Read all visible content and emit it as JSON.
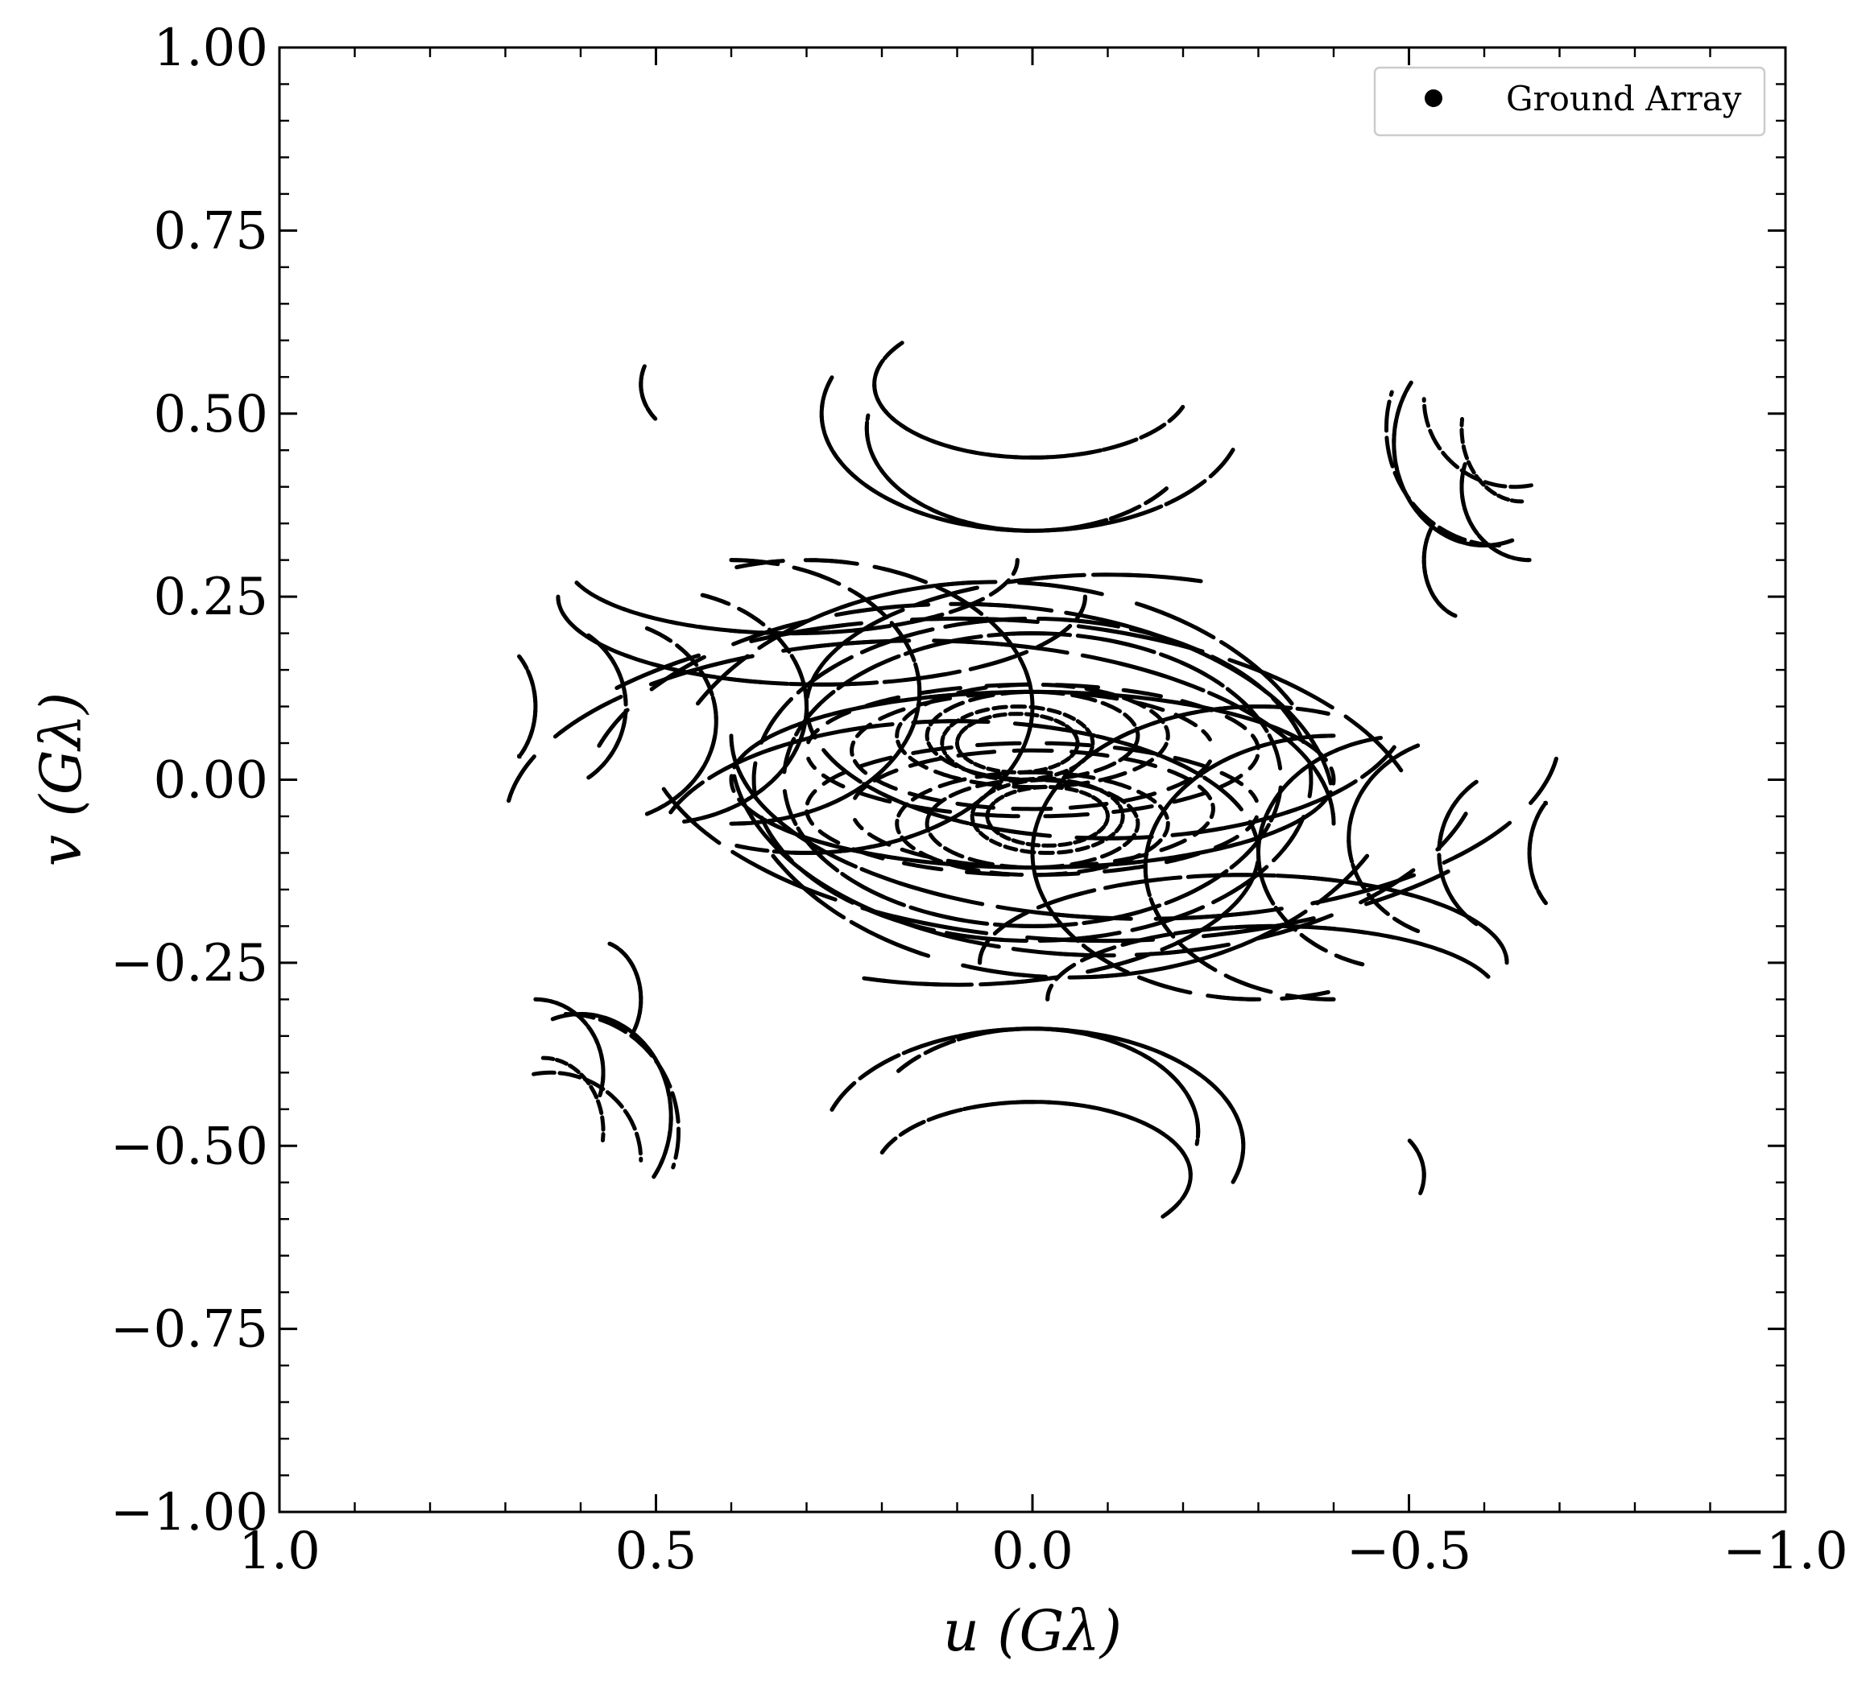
{
  "chart_data": {
    "type": "scatter",
    "title": "",
    "xlabel": "u (Gλ)",
    "ylabel": "v (Gλ)",
    "xlim": [
      1.0,
      -1.0
    ],
    "ylim": [
      -1.0,
      1.0
    ],
    "x_inverted": true,
    "grid": false,
    "legend_position": "top-right",
    "x_ticks": [
      {
        "value": 1.0,
        "label": "1.0"
      },
      {
        "value": 0.5,
        "label": "0.5"
      },
      {
        "value": 0.0,
        "label": "0.0"
      },
      {
        "value": -0.5,
        "label": "−0.5"
      },
      {
        "value": -1.0,
        "label": "−1.0"
      }
    ],
    "y_ticks": [
      {
        "value": 1.0,
        "label": "1.00"
      },
      {
        "value": 0.75,
        "label": "0.75"
      },
      {
        "value": 0.5,
        "label": "0.50"
      },
      {
        "value": 0.25,
        "label": "0.25"
      },
      {
        "value": 0.0,
        "label": "0.00"
      },
      {
        "value": -0.25,
        "label": "−0.25"
      },
      {
        "value": -0.5,
        "label": "−0.50"
      },
      {
        "value": -0.75,
        "label": "−0.75"
      },
      {
        "value": -1.0,
        "label": "−1.00"
      }
    ],
    "series": [
      {
        "name": "Ground Array",
        "color": "#000000",
        "marker": "dot",
        "tracks": [
          {
            "ru": 0.4,
            "rv": 0.12,
            "u0": 0.0,
            "v0": 0.0,
            "gap": 0.1,
            "from": 0.05,
            "to": 0.95
          },
          {
            "ru": 0.3,
            "rv": 0.09,
            "u0": 0.0,
            "v0": 0.04,
            "gap": 0.12,
            "from": 0.02,
            "to": 0.98
          },
          {
            "ru": 0.24,
            "rv": 0.08,
            "u0": 0.0,
            "v0": -0.04,
            "gap": 0.11,
            "from": 0.03,
            "to": 0.97
          },
          {
            "ru": 0.18,
            "rv": 0.07,
            "u0": 0.0,
            "v0": 0.06,
            "gap": 0.1,
            "from": 0.0,
            "to": 1.0
          },
          {
            "ru": 0.14,
            "rv": 0.06,
            "u0": 0.0,
            "v0": -0.06,
            "gap": 0.09,
            "from": 0.0,
            "to": 1.0
          },
          {
            "ru": 0.1,
            "rv": 0.05,
            "u0": 0.02,
            "v0": 0.05,
            "gap": 0.08,
            "from": 0.0,
            "to": 1.0
          },
          {
            "ru": 0.08,
            "rv": 0.04,
            "u0": -0.02,
            "v0": -0.05,
            "gap": 0.08,
            "from": 0.0,
            "to": 1.0
          },
          {
            "ru": 0.37,
            "rv": 0.22,
            "u0": 0.0,
            "v0": 0.0,
            "gap": 0.13,
            "from": 0.05,
            "to": 0.95
          },
          {
            "ru": 0.33,
            "rv": 0.2,
            "u0": 0.0,
            "v0": 0.0,
            "gap": 0.13,
            "from": 0.05,
            "to": 0.95
          },
          {
            "ru": 0.4,
            "rv": 0.18,
            "u0": -0.1,
            "v0": 0.1,
            "gap": 0.12,
            "from": 0.55,
            "to": 1.3
          },
          {
            "ru": 0.4,
            "rv": 0.18,
            "u0": 0.1,
            "v0": -0.1,
            "gap": 0.12,
            "from": 0.05,
            "to": 0.8
          },
          {
            "ru": 0.21,
            "rv": 0.1,
            "u0": 0.0,
            "v0": 0.54,
            "gap": 0.08,
            "from": 0.55,
            "to": 1.1
          },
          {
            "ru": 0.21,
            "rv": 0.1,
            "u0": 0.0,
            "v0": -0.54,
            "gap": 0.08,
            "from": 0.05,
            "to": 0.6
          },
          {
            "ru": 0.28,
            "rv": 0.16,
            "u0": 0.0,
            "v0": 0.5,
            "gap": 0.07,
            "from": 0.55,
            "to": 1.05
          },
          {
            "ru": 0.28,
            "rv": 0.16,
            "u0": 0.0,
            "v0": -0.5,
            "gap": 0.07,
            "from": 0.05,
            "to": 0.55
          },
          {
            "ru": 0.22,
            "rv": 0.14,
            "u0": 0.0,
            "v0": 0.48,
            "gap": 0.07,
            "from": 0.6,
            "to": 1.02
          },
          {
            "ru": 0.22,
            "rv": 0.14,
            "u0": 0.0,
            "v0": -0.48,
            "gap": 0.07,
            "from": 0.1,
            "to": 0.52
          },
          {
            "ru": 0.12,
            "rv": 0.14,
            "u0": -0.6,
            "v0": 0.46,
            "gap": 0.06,
            "from": 0.7,
            "to": 1.1
          },
          {
            "ru": 0.12,
            "rv": 0.14,
            "u0": 0.6,
            "v0": -0.46,
            "gap": 0.06,
            "from": 0.2,
            "to": 0.6
          },
          {
            "ru": 0.09,
            "rv": 0.1,
            "u0": -0.66,
            "v0": 0.4,
            "gap": 0.05,
            "from": 0.75,
            "to": 1.05
          },
          {
            "ru": 0.09,
            "rv": 0.1,
            "u0": 0.66,
            "v0": -0.4,
            "gap": 0.05,
            "from": 0.25,
            "to": 0.55
          },
          {
            "ru": 0.06,
            "rv": 0.08,
            "u0": -0.58,
            "v0": 0.3,
            "gap": 0.05,
            "from": 0.8,
            "to": 1.1
          },
          {
            "ru": 0.06,
            "rv": 0.08,
            "u0": 0.58,
            "v0": -0.3,
            "gap": 0.05,
            "from": 0.3,
            "to": 0.6
          },
          {
            "ru": 0.55,
            "rv": 0.25,
            "u0": -0.15,
            "v0": 0.06,
            "gap": 0.14,
            "from": 0.52,
            "to": 1.0
          },
          {
            "ru": 0.55,
            "rv": 0.25,
            "u0": 0.15,
            "v0": -0.06,
            "gap": 0.14,
            "from": 0.02,
            "to": 0.5
          },
          {
            "ru": 0.5,
            "rv": 0.28,
            "u0": -0.1,
            "v0": 0.04,
            "gap": 0.14,
            "from": 0.55,
            "to": 0.98
          },
          {
            "ru": 0.5,
            "rv": 0.28,
            "u0": 0.1,
            "v0": -0.04,
            "gap": 0.14,
            "from": 0.05,
            "to": 0.48
          },
          {
            "ru": 0.62,
            "rv": 0.3,
            "u0": -0.1,
            "v0": 0.08,
            "gap": 0.15,
            "from": 0.62,
            "to": 0.95
          },
          {
            "ru": 0.62,
            "rv": 0.3,
            "u0": 0.1,
            "v0": -0.08,
            "gap": 0.15,
            "from": 0.12,
            "to": 0.45
          },
          {
            "ru": 0.45,
            "rv": 0.32,
            "u0": -0.05,
            "v0": 0.05,
            "gap": 0.13,
            "from": 0.58,
            "to": 0.92
          },
          {
            "ru": 0.45,
            "rv": 0.32,
            "u0": 0.05,
            "v0": -0.05,
            "gap": 0.13,
            "from": 0.08,
            "to": 0.42
          },
          {
            "ru": 0.3,
            "rv": 0.2,
            "u0": -0.3,
            "v0": -0.1,
            "gap": 0.12,
            "from": 0.7,
            "to": 1.3
          },
          {
            "ru": 0.3,
            "rv": 0.2,
            "u0": 0.3,
            "v0": 0.1,
            "gap": 0.12,
            "from": 0.2,
            "to": 0.8
          },
          {
            "ru": 0.25,
            "rv": 0.18,
            "u0": -0.4,
            "v0": -0.12,
            "gap": 0.11,
            "from": 0.75,
            "to": 1.25
          },
          {
            "ru": 0.25,
            "rv": 0.18,
            "u0": 0.4,
            "v0": 0.12,
            "gap": 0.11,
            "from": 0.25,
            "to": 0.75
          },
          {
            "ru": 0.2,
            "rv": 0.16,
            "u0": -0.5,
            "v0": -0.1,
            "gap": 0.1,
            "from": 0.8,
            "to": 1.22
          },
          {
            "ru": 0.2,
            "rv": 0.16,
            "u0": 0.5,
            "v0": 0.1,
            "gap": 0.1,
            "from": 0.3,
            "to": 0.72
          },
          {
            "ru": 0.16,
            "rv": 0.14,
            "u0": -0.58,
            "v0": -0.08,
            "gap": 0.09,
            "from": 0.82,
            "to": 1.18
          },
          {
            "ru": 0.16,
            "rv": 0.14,
            "u0": 0.58,
            "v0": 0.08,
            "gap": 0.09,
            "from": 0.32,
            "to": 0.68
          },
          {
            "ru": 0.12,
            "rv": 0.12,
            "u0": -0.66,
            "v0": -0.1,
            "gap": 0.08,
            "from": 0.85,
            "to": 1.15
          },
          {
            "ru": 0.12,
            "rv": 0.12,
            "u0": 0.66,
            "v0": 0.1,
            "gap": 0.08,
            "from": 0.35,
            "to": 0.65
          },
          {
            "ru": 0.08,
            "rv": 0.1,
            "u0": -0.74,
            "v0": -0.1,
            "gap": 0.06,
            "from": 0.88,
            "to": 1.12
          },
          {
            "ru": 0.08,
            "rv": 0.1,
            "u0": 0.74,
            "v0": 0.1,
            "gap": 0.06,
            "from": 0.38,
            "to": 0.62
          },
          {
            "ru": 0.12,
            "rv": 0.12,
            "u0": 0.64,
            "v0": -0.52,
            "gap": 0.06,
            "from": 0.22,
            "to": 0.5
          },
          {
            "ru": 0.15,
            "rv": 0.16,
            "u0": 0.62,
            "v0": -0.48,
            "gap": 0.06,
            "from": 0.25,
            "to": 0.55
          },
          {
            "ru": 0.08,
            "rv": 0.1,
            "u0": -0.65,
            "v0": 0.48,
            "gap": 0.06,
            "from": 0.75,
            "to": 1.02
          },
          {
            "ru": 0.1,
            "rv": 0.08,
            "u0": -0.42,
            "v0": -0.54,
            "gap": 0.05,
            "from": 0.4,
            "to": 0.55
          },
          {
            "ru": 0.1,
            "rv": 0.08,
            "u0": 0.42,
            "v0": 0.54,
            "gap": 0.05,
            "from": 0.9,
            "to": 1.05
          },
          {
            "ru": 0.35,
            "rv": 0.12,
            "u0": -0.28,
            "v0": -0.25,
            "gap": 0.11,
            "from": 0.0,
            "to": 0.5
          },
          {
            "ru": 0.35,
            "rv": 0.12,
            "u0": 0.28,
            "v0": 0.25,
            "gap": 0.11,
            "from": 0.5,
            "to": 1.0
          },
          {
            "ru": 0.3,
            "rv": 0.1,
            "u0": -0.32,
            "v0": -0.3,
            "gap": 0.11,
            "from": 0.0,
            "to": 0.45
          },
          {
            "ru": 0.3,
            "rv": 0.1,
            "u0": 0.32,
            "v0": 0.3,
            "gap": 0.11,
            "from": 0.5,
            "to": 0.95
          }
        ]
      }
    ]
  }
}
